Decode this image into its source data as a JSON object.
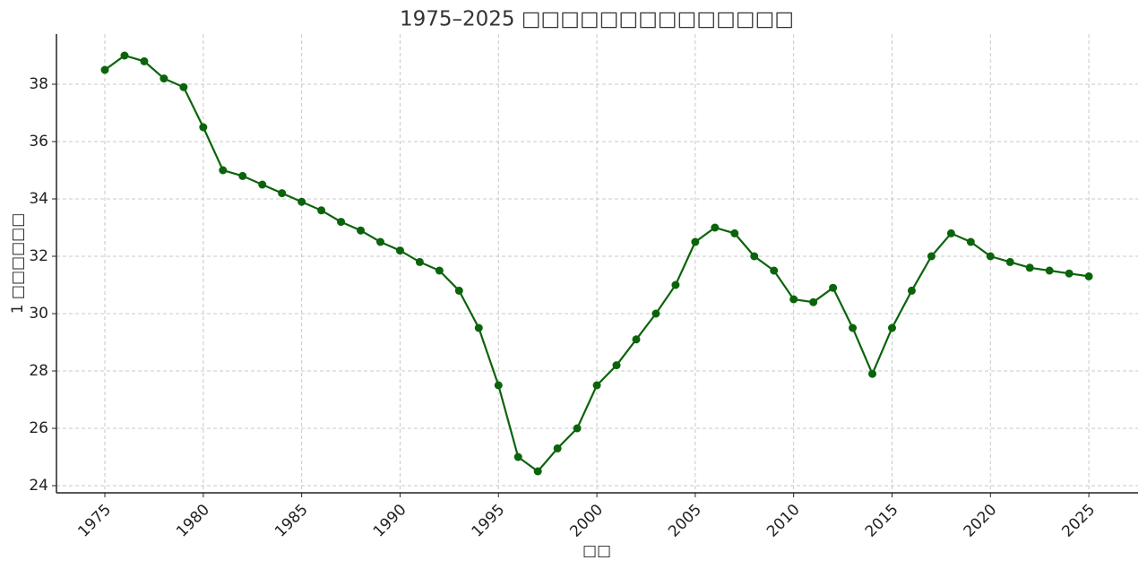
{
  "chart_data": {
    "type": "line",
    "title": "1975–2025 □□□□□□□□□□□□□□",
    "xlabel": "□□",
    "ylabel": "1 □□□□□□",
    "x": [
      1975,
      1976,
      1977,
      1978,
      1979,
      1980,
      1981,
      1982,
      1983,
      1984,
      1985,
      1986,
      1987,
      1988,
      1989,
      1990,
      1991,
      1992,
      1993,
      1994,
      1995,
      1996,
      1997,
      1998,
      1999,
      2000,
      2001,
      2002,
      2003,
      2004,
      2005,
      2006,
      2007,
      2008,
      2009,
      2010,
      2011,
      2012,
      2013,
      2014,
      2015,
      2016,
      2017,
      2018,
      2019,
      2020,
      2021,
      2022,
      2023,
      2024,
      2025
    ],
    "values": [
      38.5,
      39.0,
      38.8,
      38.2,
      37.9,
      36.5,
      35.0,
      34.8,
      34.5,
      34.2,
      33.9,
      33.6,
      33.2,
      32.9,
      32.5,
      32.2,
      31.8,
      31.5,
      30.8,
      29.5,
      27.5,
      25.0,
      24.5,
      25.3,
      26.0,
      27.5,
      28.2,
      29.1,
      30.0,
      31.0,
      32.5,
      33.0,
      32.8,
      32.0,
      31.5,
      30.5,
      30.4,
      30.9,
      29.5,
      27.9,
      29.5,
      30.8,
      32.0,
      32.8,
      32.5,
      32.0,
      31.8,
      31.6,
      31.5,
      31.4,
      31.3
    ],
    "color": "#0b640b",
    "xlim": [
      1972.54,
      2027.5
    ],
    "ylim": [
      23.75,
      39.75
    ],
    "xticks": [
      1975,
      1980,
      1985,
      1990,
      1995,
      2000,
      2005,
      2010,
      2015,
      2020,
      2025
    ],
    "yticks": [
      24,
      26,
      28,
      30,
      32,
      34,
      36,
      38
    ],
    "grid": true
  }
}
